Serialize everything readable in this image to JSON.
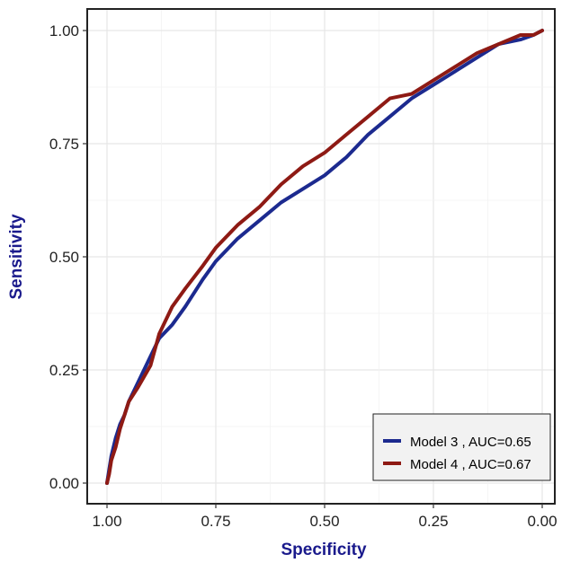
{
  "chart_data": {
    "type": "line",
    "xlabel": "Specificity",
    "ylabel": "Sensitivity",
    "xlim": [
      1.0,
      0.0
    ],
    "ylim": [
      0.0,
      1.0
    ],
    "x_reversed": true,
    "grid": true,
    "legend_position": "bottom-right",
    "x_ticks": [
      {
        "value": 1.0,
        "label": "1.00"
      },
      {
        "value": 0.75,
        "label": "0.75"
      },
      {
        "value": 0.5,
        "label": "0.50"
      },
      {
        "value": 0.25,
        "label": "0.25"
      },
      {
        "value": 0.0,
        "label": "0.00"
      }
    ],
    "y_ticks": [
      {
        "value": 0.0,
        "label": "0.00"
      },
      {
        "value": 0.25,
        "label": "0.25"
      },
      {
        "value": 0.5,
        "label": "0.50"
      },
      {
        "value": 0.75,
        "label": "0.75"
      },
      {
        "value": 1.0,
        "label": "1.00"
      }
    ],
    "series": [
      {
        "name": "Model 3 , AUC=0.65",
        "color": "#1c2a8f",
        "x": [
          1.0,
          0.995,
          0.99,
          0.98,
          0.97,
          0.96,
          0.95,
          0.93,
          0.9,
          0.88,
          0.85,
          0.82,
          0.78,
          0.75,
          0.7,
          0.65,
          0.6,
          0.55,
          0.5,
          0.45,
          0.4,
          0.35,
          0.3,
          0.25,
          0.2,
          0.15,
          0.1,
          0.05,
          0.02,
          0.0
        ],
        "y": [
          0.0,
          0.03,
          0.06,
          0.1,
          0.13,
          0.15,
          0.18,
          0.22,
          0.28,
          0.32,
          0.35,
          0.39,
          0.45,
          0.49,
          0.54,
          0.58,
          0.62,
          0.65,
          0.68,
          0.72,
          0.77,
          0.81,
          0.85,
          0.88,
          0.91,
          0.94,
          0.97,
          0.98,
          0.99,
          1.0
        ]
      },
      {
        "name": "Model 4 , AUC=0.67",
        "color": "#8e1a14",
        "x": [
          1.0,
          0.995,
          0.99,
          0.98,
          0.97,
          0.96,
          0.95,
          0.93,
          0.9,
          0.88,
          0.85,
          0.82,
          0.78,
          0.75,
          0.7,
          0.65,
          0.6,
          0.55,
          0.5,
          0.45,
          0.4,
          0.35,
          0.3,
          0.25,
          0.2,
          0.15,
          0.1,
          0.05,
          0.02,
          0.0
        ],
        "y": [
          0.0,
          0.02,
          0.05,
          0.08,
          0.12,
          0.15,
          0.18,
          0.21,
          0.26,
          0.33,
          0.39,
          0.43,
          0.48,
          0.52,
          0.57,
          0.61,
          0.66,
          0.7,
          0.73,
          0.77,
          0.81,
          0.85,
          0.86,
          0.89,
          0.92,
          0.95,
          0.97,
          0.99,
          0.99,
          1.0
        ]
      }
    ]
  }
}
